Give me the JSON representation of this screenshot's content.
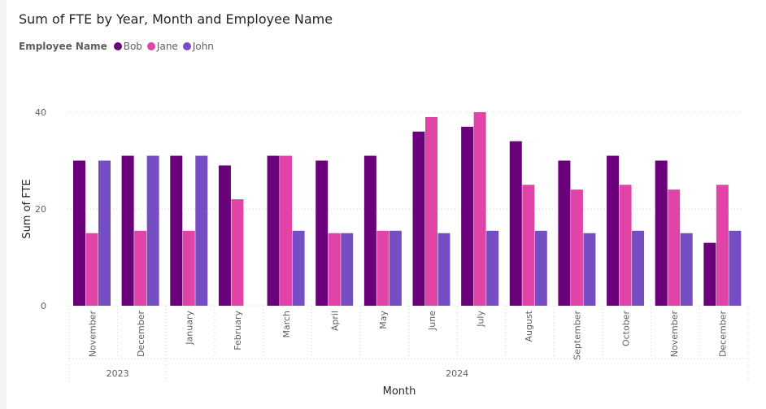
{
  "chart_data": {
    "type": "bar",
    "title": "Sum of FTE by Year, Month and Employee Name",
    "legend_title": "Employee Name",
    "xlabel": "Month",
    "ylabel": "Sum of FTE",
    "ylim": [
      0,
      45
    ],
    "yticks": [
      0,
      20,
      40
    ],
    "grid": true,
    "legend_position": "top-left",
    "categories": [
      "November",
      "December",
      "January",
      "February",
      "March",
      "April",
      "May",
      "June",
      "July",
      "August",
      "September",
      "October",
      "November",
      "December"
    ],
    "year_groups": [
      {
        "label": "2023",
        "count": 2
      },
      {
        "label": "2024",
        "count": 12
      }
    ],
    "series": [
      {
        "name": "Bob",
        "color": "#6b007b",
        "values": [
          30,
          31,
          31,
          29,
          31,
          30,
          31,
          36,
          37,
          34,
          30,
          31,
          30,
          13
        ]
      },
      {
        "name": "Jane",
        "color": "#e044a7",
        "values": [
          15,
          15.5,
          15.5,
          22,
          31,
          15,
          15.5,
          39,
          40,
          25,
          24,
          25,
          24,
          25
        ]
      },
      {
        "name": "John",
        "color": "#744ec2",
        "values": [
          30,
          31,
          31,
          null,
          15.5,
          15,
          15.5,
          15,
          15.5,
          15.5,
          15,
          15.5,
          15,
          15.5
        ]
      }
    ]
  }
}
